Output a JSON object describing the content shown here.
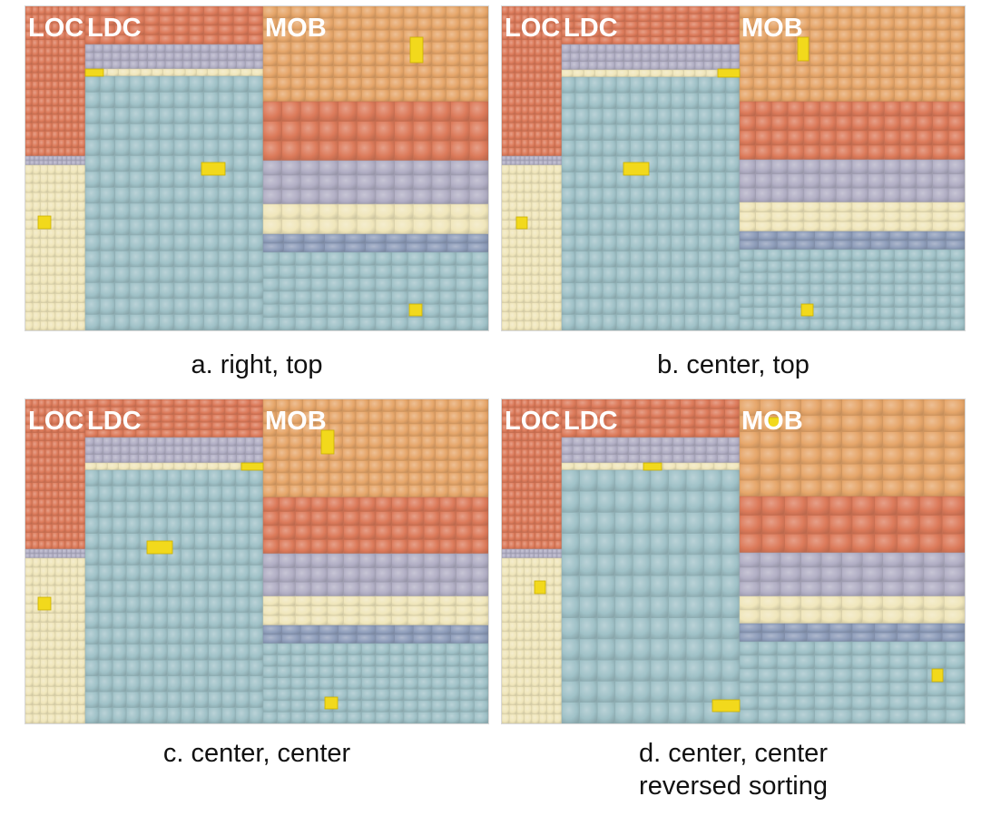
{
  "panels": [
    {
      "id": "a",
      "caption": "a. right, top",
      "group_labels": [
        "LOC",
        "LDC",
        "MOB"
      ]
    },
    {
      "id": "b",
      "caption": "b. center, top",
      "group_labels": [
        "LOC",
        "LDC",
        "MOB"
      ]
    },
    {
      "id": "c",
      "caption": "c. center, center",
      "group_labels": [
        "LOC",
        "LDC",
        "MOB"
      ]
    },
    {
      "id": "d",
      "caption": "d. center, center\nreversed sorting",
      "group_labels": [
        "LOC",
        "LDC",
        "MOB"
      ]
    }
  ],
  "colors": {
    "orange": "#e6a66a",
    "red": "#dc7a5a",
    "lavender": "#b1aec4",
    "cream": "#f0e6bb",
    "slate": "#8e9dba",
    "teal": "#9fc1c7",
    "highlight": "#f2d91c"
  }
}
